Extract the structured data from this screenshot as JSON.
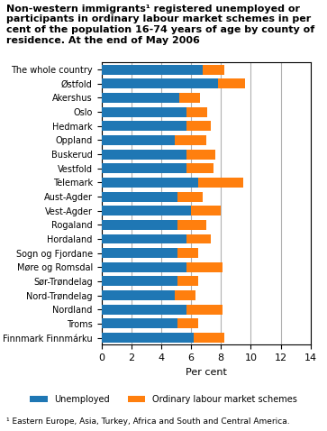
{
  "chart_data": {
    "type": "bar",
    "orientation": "horizontal",
    "stacked": true,
    "title": "Non-western immigrants¹ registered unemployed or\nparticipants in ordinary labour market schemes in per\ncent of the population 16-74 years of age by county of\nresidence. At the end of May 2006",
    "footnote": "¹ Eastern Europe, Asia, Turkey, Africa and South and Central America.",
    "categories": [
      "The whole country",
      "Østfold",
      "Akershus",
      "Oslo",
      "Hedmark",
      "Oppland",
      "Buskerud",
      "Vestfold",
      "Telemark",
      "Aust-Agder",
      "Vest-Agder",
      "Rogaland",
      "Hordaland",
      "Sogn og Fjordane",
      "Møre og Romsdal",
      "Sør-Trøndelag",
      "Nord-Trøndelag",
      "Nordland",
      "Troms",
      "Finnmark Finnmárku"
    ],
    "series": [
      {
        "name": "Unemployed",
        "values": [
          6.8,
          7.8,
          5.2,
          5.7,
          5.7,
          4.9,
          5.7,
          5.7,
          6.5,
          5.1,
          6.0,
          5.1,
          5.7,
          5.1,
          5.7,
          5.1,
          4.9,
          5.7,
          5.1,
          6.2
        ]
      },
      {
        "name": "Ordinary labour market schemes",
        "values": [
          1.4,
          1.8,
          1.4,
          1.4,
          1.6,
          2.1,
          1.9,
          1.8,
          3.0,
          1.7,
          2.0,
          1.9,
          1.6,
          1.4,
          2.4,
          1.4,
          1.4,
          2.4,
          1.4,
          2.0
        ]
      }
    ],
    "xlabel": "Per cent",
    "xlim": [
      0,
      14
    ],
    "xticks": [
      0,
      2,
      4,
      6,
      8,
      10,
      12,
      14
    ],
    "grid": true,
    "legend": "lower center"
  }
}
